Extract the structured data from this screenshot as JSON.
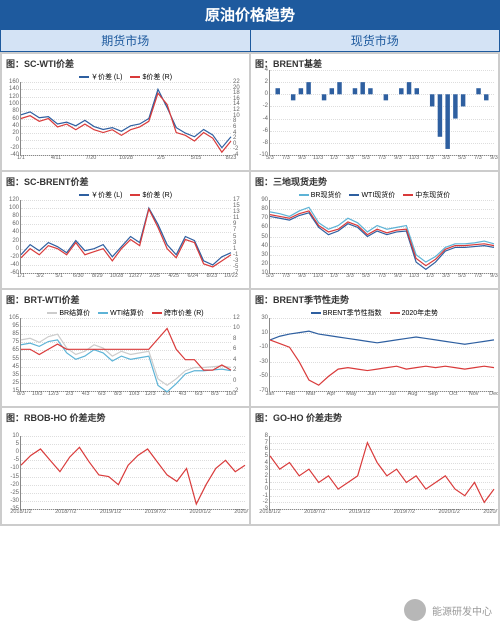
{
  "main_title": "原油价格趋势",
  "col_left": "期货市场",
  "col_right": "现货市场",
  "watermark": "能源研发中心",
  "colors": {
    "blue": "#2e5fa0",
    "red": "#d93a3a",
    "green": "#3a9a4a",
    "cyan": "#5db3d6",
    "orange": "#e67a1e",
    "gray": "#cccccc"
  },
  "charts": [
    {
      "title": "图：SC-WTI价差",
      "dual_axis": true,
      "legend": [
        {
          "label": "￥价差 (L)",
          "color": "#2e5fa0"
        },
        {
          "label": "$价差 (R)",
          "color": "#d93a3a"
        }
      ],
      "y_left": {
        "min": -40,
        "max": 160,
        "step": 20
      },
      "y_right": {
        "min": -4,
        "max": 22,
        "step": 2
      },
      "x": [
        "1/1",
        "4/11",
        "7/20",
        "10/28",
        "2/5",
        "5/15",
        "8/23"
      ],
      "series": [
        {
          "color": "#2e5fa0",
          "axis": "L",
          "data": [
            70,
            78,
            62,
            65,
            45,
            50,
            40,
            55,
            38,
            30,
            35,
            25,
            40,
            45,
            60,
            140,
            90,
            35,
            20,
            10,
            30,
            15,
            -20,
            10
          ]
        },
        {
          "color": "#d93a3a",
          "axis": "R",
          "data": [
            9,
            10,
            8,
            9,
            6,
            7,
            5,
            7,
            5,
            4,
            5,
            3,
            5,
            6,
            8,
            18,
            14,
            4,
            3,
            1,
            4,
            2,
            -3,
            1
          ]
        }
      ]
    },
    {
      "title": "图：BRENT基差",
      "dual_axis": false,
      "type": "bar",
      "y_left": {
        "min": -10,
        "max": 4,
        "step": 2
      },
      "x": [
        "5/3",
        "7/3",
        "9/3",
        "11/3",
        "1/3",
        "3/3",
        "5/3",
        "7/3",
        "9/3",
        "11/3",
        "1/3",
        "3/3",
        "5/3",
        "7/3",
        "9/3"
      ],
      "series": [
        {
          "color": "#2e5fa0",
          "data": [
            0,
            1,
            0,
            -1,
            1,
            2,
            0,
            -1,
            1,
            2,
            0,
            1,
            2,
            1,
            0,
            -1,
            0,
            1,
            2,
            1,
            0,
            -2,
            -7,
            -9,
            -4,
            -2,
            0,
            1,
            -1,
            0
          ]
        }
      ]
    },
    {
      "title": "图：SC-BRENT价差",
      "dual_axis": true,
      "legend": [
        {
          "label": "￥价差 (L)",
          "color": "#2e5fa0"
        },
        {
          "label": "$价差 (R)",
          "color": "#d93a3a"
        }
      ],
      "y_left": {
        "min": -60,
        "max": 120,
        "step": 20
      },
      "y_right": {
        "min": -7,
        "max": 17,
        "step": 2
      },
      "x": [
        "1/1",
        "3/2",
        "5/1",
        "6/30",
        "8/29",
        "10/28",
        "12/27",
        "2/25",
        "4/25",
        "6/24",
        "8/23",
        "10/22"
      ],
      "series": [
        {
          "color": "#2e5fa0",
          "axis": "L",
          "data": [
            -15,
            10,
            -5,
            15,
            5,
            -10,
            20,
            -5,
            0,
            10,
            -20,
            5,
            30,
            15,
            100,
            60,
            10,
            -15,
            30,
            20,
            -30,
            -40,
            -20,
            -10
          ]
        },
        {
          "color": "#d93a3a",
          "axis": "R",
          "data": [
            -2,
            1,
            -1,
            2,
            1,
            -1,
            3,
            -1,
            0,
            1,
            -3,
            1,
            4,
            2,
            14,
            8,
            1,
            -2,
            4,
            3,
            -4,
            -5,
            -3,
            -1
          ]
        }
      ]
    },
    {
      "title": "图：三地现货走势",
      "dual_axis": false,
      "legend": [
        {
          "label": "BR现货价",
          "color": "#5db3d6"
        },
        {
          "label": "WTI现货价",
          "color": "#2e5fa0"
        },
        {
          "label": "中东现货价",
          "color": "#d93a3a"
        }
      ],
      "y_left": {
        "min": 10,
        "max": 90,
        "step": 10
      },
      "x": [
        "5/3",
        "7/3",
        "9/3",
        "11/3",
        "1/3",
        "3/3",
        "5/3",
        "7/3",
        "9/3",
        "11/3",
        "1/3",
        "3/3",
        "5/3",
        "7/3",
        "9/3"
      ],
      "series": [
        {
          "color": "#5db3d6",
          "data": [
            77,
            75,
            72,
            78,
            82,
            65,
            58,
            62,
            70,
            65,
            55,
            62,
            58,
            60,
            62,
            30,
            22,
            28,
            38,
            42,
            42,
            43,
            45,
            42
          ]
        },
        {
          "color": "#2e5fa0",
          "data": [
            72,
            70,
            68,
            73,
            76,
            60,
            52,
            56,
            64,
            60,
            50,
            56,
            52,
            55,
            56,
            22,
            14,
            22,
            34,
            38,
            38,
            39,
            40,
            38
          ]
        },
        {
          "color": "#d93a3a",
          "data": [
            74,
            72,
            70,
            75,
            78,
            62,
            55,
            58,
            66,
            62,
            52,
            58,
            54,
            57,
            58,
            26,
            18,
            25,
            36,
            40,
            40,
            41,
            42,
            40
          ]
        }
      ]
    },
    {
      "title": "图：BRT-WTI价差",
      "dual_axis": true,
      "legend": [
        {
          "label": "BR结算价",
          "color": "#cccccc"
        },
        {
          "label": "WTI结算价",
          "color": "#5db3d6"
        },
        {
          "label": "跨市价差 (R)",
          "color": "#d93a3a"
        }
      ],
      "y_left": {
        "min": 15,
        "max": 105,
        "step": 10
      },
      "y_right": {
        "min": -2,
        "max": 12,
        "step": 2
      },
      "x": [
        "8/3",
        "10/3",
        "12/3",
        "2/3",
        "4/3",
        "6/3",
        "8/3",
        "10/3",
        "12/3",
        "2/3",
        "4/3",
        "6/3",
        "8/3",
        "10/3"
      ],
      "series": [
        {
          "color": "#cccccc",
          "axis": "L",
          "data": [
            78,
            80,
            75,
            82,
            85,
            68,
            60,
            64,
            72,
            68,
            58,
            64,
            60,
            62,
            64,
            30,
            22,
            30,
            40,
            44,
            44,
            45,
            46,
            44
          ]
        },
        {
          "color": "#5db3d6",
          "axis": "L",
          "data": [
            72,
            74,
            70,
            76,
            78,
            62,
            54,
            58,
            66,
            62,
            52,
            58,
            54,
            56,
            58,
            22,
            14,
            24,
            36,
            40,
            40,
            41,
            42,
            40
          ]
        },
        {
          "color": "#d93a3a",
          "axis": "R",
          "data": [
            6,
            6,
            5,
            6,
            7,
            6,
            6,
            6,
            6,
            6,
            6,
            6,
            6,
            6,
            6,
            8,
            10,
            6,
            4,
            4,
            2,
            2,
            3,
            2
          ]
        }
      ]
    },
    {
      "title": "图：BRENT季节性走势",
      "dual_axis": false,
      "legend": [
        {
          "label": "BRENT季节性指数",
          "color": "#2e5fa0"
        },
        {
          "label": "2020年走势",
          "color": "#d93a3a"
        }
      ],
      "y_left": {
        "min": -70,
        "max": 30,
        "step": 20
      },
      "x": [
        "Jan",
        "Feb",
        "Mar",
        "Apr",
        "May",
        "Jun",
        "Jul",
        "Aug",
        "Sep",
        "Oct",
        "Nov",
        "Dec"
      ],
      "series": [
        {
          "color": "#2e5fa0",
          "data": [
            0,
            5,
            8,
            10,
            12,
            8,
            6,
            4,
            2,
            0,
            -2,
            -4,
            -2,
            0,
            2,
            4,
            2,
            0,
            -2,
            -4,
            -6,
            -4,
            -2,
            0
          ]
        },
        {
          "color": "#d93a3a",
          "data": [
            0,
            -5,
            -10,
            -30,
            -55,
            -62,
            -50,
            -40,
            -38,
            -40,
            -42,
            -40,
            -38,
            -36,
            -40,
            -38,
            -36,
            -38,
            -36,
            -38,
            -40,
            -38,
            -36,
            -38
          ]
        }
      ]
    },
    {
      "title": "图：RBOB-HO  价差走势",
      "dual_axis": false,
      "y_left": {
        "min": -35,
        "max": 10,
        "step": 5
      },
      "x": [
        "2018/1/2",
        "2018/7/2",
        "2019/1/2",
        "2019/7/2",
        "2020/1/2",
        "2020/7/2"
      ],
      "series": [
        {
          "color": "#d93a3a",
          "data": [
            -8,
            -2,
            2,
            -5,
            -12,
            -3,
            3,
            -6,
            -14,
            -15,
            -20,
            -8,
            -2,
            2,
            -6,
            -14,
            -18,
            -10,
            -32,
            -20,
            -10,
            -5,
            -12,
            -8
          ]
        }
      ]
    },
    {
      "title": "图：GO-HO  价差走势",
      "dual_axis": false,
      "y_left": {
        "min": -3,
        "max": 8,
        "step": 1
      },
      "x": [
        "2018/1/2",
        "2018/7/2",
        "2019/1/2",
        "2019/7/2",
        "2020/1/2",
        "2020/7/2"
      ],
      "series": [
        {
          "color": "#d93a3a",
          "data": [
            5,
            3,
            4,
            2,
            3,
            1,
            2,
            0,
            1,
            2,
            7,
            4,
            2,
            3,
            1,
            2,
            0,
            1,
            2,
            0,
            -1,
            1,
            -2,
            0
          ]
        }
      ]
    }
  ]
}
